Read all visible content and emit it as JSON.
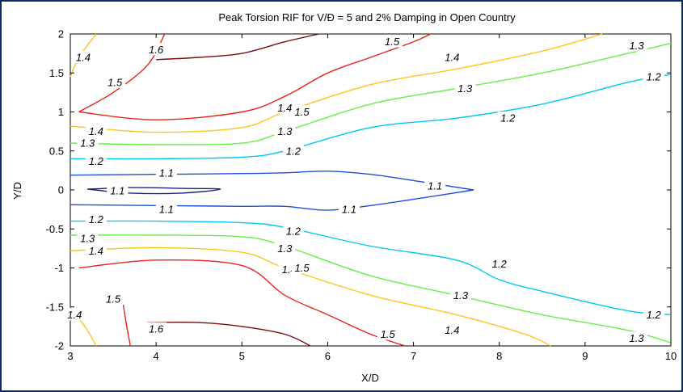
{
  "chart_data": {
    "type": "contour",
    "title": "Peak Torsion RIF for V/Đ = 5 and 2% Damping in Open Country",
    "xlabel": "X/D",
    "ylabel": "Y/D",
    "xlim": [
      3,
      10
    ],
    "ylim": [
      -2,
      2
    ],
    "xticks": [
      "3",
      "4",
      "5",
      "6",
      "7",
      "8",
      "9",
      "10"
    ],
    "yticks": [
      "2",
      "1.5",
      "1",
      "0.5",
      "0",
      "-0.5",
      "-1",
      "-1.5",
      "-2"
    ],
    "grid": false,
    "levels": [
      {
        "level": "1.1",
        "color": "#1f4fd8",
        "lines": [
          [
            [
              3.0,
              0.19
            ],
            [
              4.0,
              0.2
            ],
            [
              5.0,
              0.21
            ],
            [
              5.5,
              0.22
            ],
            [
              6.0,
              0.24
            ],
            [
              6.5,
              0.2
            ],
            [
              7.0,
              0.12
            ],
            [
              7.7,
              0.0
            ]
          ],
          [
            [
              3.0,
              -0.19
            ],
            [
              4.0,
              -0.2
            ],
            [
              5.0,
              -0.21
            ],
            [
              5.5,
              -0.21
            ],
            [
              6.0,
              -0.26
            ],
            [
              6.5,
              -0.2
            ],
            [
              7.0,
              -0.12
            ],
            [
              7.7,
              0.0
            ]
          ]
        ],
        "labels": [
          [
            4.12,
            0.22
          ],
          [
            4.12,
            -0.25
          ],
          [
            6.25,
            -0.25
          ],
          [
            7.25,
            0.05
          ]
        ]
      },
      {
        "level": "1.1",
        "color": "#1a237e",
        "lines": [
          [
            [
              3.2,
              0.01
            ],
            [
              3.7,
              0.03
            ],
            [
              4.3,
              0.02
            ],
            [
              4.75,
              0.01
            ],
            [
              4.3,
              -0.04
            ],
            [
              3.7,
              -0.04
            ],
            [
              3.2,
              0.01
            ]
          ]
        ],
        "labels": [
          [
            3.55,
            -0.01
          ]
        ]
      },
      {
        "level": "1.2",
        "color": "#00c8ee",
        "lines": [
          [
            [
              3.0,
              0.4
            ],
            [
              4.0,
              0.4
            ],
            [
              5.0,
              0.42
            ],
            [
              5.5,
              0.5
            ],
            [
              6.5,
              0.8
            ],
            [
              7.5,
              0.92
            ],
            [
              8.5,
              1.1
            ],
            [
              9.5,
              1.38
            ],
            [
              10.0,
              1.48
            ]
          ],
          [
            [
              3.0,
              -0.4
            ],
            [
              4.0,
              -0.4
            ],
            [
              5.0,
              -0.42
            ],
            [
              5.5,
              -0.48
            ],
            [
              6.5,
              -0.72
            ],
            [
              7.5,
              -0.9
            ],
            [
              8.0,
              -1.15
            ],
            [
              8.5,
              -1.3
            ],
            [
              9.5,
              -1.55
            ],
            [
              10.0,
              -1.6
            ]
          ]
        ],
        "labels": [
          [
            3.3,
            0.37
          ],
          [
            3.3,
            -0.38
          ],
          [
            5.6,
            0.5
          ],
          [
            5.6,
            -0.53
          ],
          [
            8.1,
            0.92
          ],
          [
            8.0,
            -0.95
          ],
          [
            9.8,
            1.45
          ],
          [
            9.8,
            -1.6
          ]
        ]
      },
      {
        "level": "1.3",
        "color": "#66ee44",
        "lines": [
          [
            [
              3.0,
              0.6
            ],
            [
              4.0,
              0.58
            ],
            [
              5.0,
              0.6
            ],
            [
              5.5,
              0.75
            ],
            [
              6.5,
              1.1
            ],
            [
              7.5,
              1.3
            ],
            [
              8.5,
              1.5
            ],
            [
              9.5,
              1.75
            ],
            [
              10.0,
              1.88
            ]
          ],
          [
            [
              3.0,
              -0.58
            ],
            [
              4.0,
              -0.58
            ],
            [
              5.0,
              -0.6
            ],
            [
              5.5,
              -0.72
            ],
            [
              6.5,
              -1.1
            ],
            [
              7.5,
              -1.35
            ],
            [
              8.5,
              -1.6
            ],
            [
              9.5,
              -1.8
            ],
            [
              10.0,
              -1.96
            ]
          ]
        ],
        "labels": [
          [
            3.2,
            0.6
          ],
          [
            3.2,
            -0.62
          ],
          [
            5.5,
            0.75
          ],
          [
            5.5,
            -0.75
          ],
          [
            7.6,
            1.3
          ],
          [
            7.55,
            -1.35
          ],
          [
            9.6,
            1.85
          ],
          [
            9.6,
            -1.9
          ]
        ]
      },
      {
        "level": "1.4",
        "color": "#ffc41a",
        "lines": [
          [
            [
              3.0,
              0.82
            ],
            [
              4.0,
              0.74
            ],
            [
              5.0,
              0.8
            ],
            [
              5.5,
              1.0
            ],
            [
              6.5,
              1.35
            ],
            [
              7.5,
              1.55
            ],
            [
              8.5,
              1.78
            ],
            [
              9.2,
              2.0
            ]
          ],
          [
            [
              3.0,
              -0.78
            ],
            [
              4.0,
              -0.74
            ],
            [
              5.0,
              -0.8
            ],
            [
              5.5,
              -1.0
            ],
            [
              6.5,
              -1.35
            ],
            [
              7.5,
              -1.6
            ],
            [
              8.3,
              -1.85
            ],
            [
              8.6,
              -2.0
            ]
          ],
          [
            [
              3.0,
              1.45
            ],
            [
              3.1,
              1.7
            ],
            [
              3.3,
              2.0
            ]
          ],
          [
            [
              3.0,
              -1.5
            ],
            [
              3.2,
              -1.8
            ],
            [
              3.3,
              -2.0
            ]
          ]
        ],
        "labels": [
          [
            3.3,
            0.75
          ],
          [
            3.3,
            -0.78
          ],
          [
            5.5,
            1.05
          ],
          [
            5.55,
            -1.02
          ],
          [
            7.45,
            1.7
          ],
          [
            7.45,
            -1.8
          ],
          [
            3.15,
            1.7
          ],
          [
            3.05,
            -1.6
          ]
        ]
      },
      {
        "level": "1.5",
        "color": "#e8241a",
        "lines": [
          [
            [
              3.1,
              1.0
            ],
            [
              3.5,
              1.25
            ],
            [
              3.9,
              1.6
            ],
            [
              4.1,
              2.0
            ]
          ],
          [
            [
              3.1,
              1.0
            ],
            [
              4.0,
              0.9
            ],
            [
              5.0,
              1.0
            ],
            [
              5.5,
              1.2
            ],
            [
              6.0,
              1.5
            ],
            [
              6.5,
              1.7
            ],
            [
              7.0,
              1.9
            ],
            [
              7.2,
              2.0
            ]
          ],
          [
            [
              3.1,
              -1.0
            ],
            [
              4.0,
              -0.9
            ],
            [
              5.0,
              -0.97
            ],
            [
              5.5,
              -1.35
            ],
            [
              6.0,
              -1.6
            ],
            [
              6.5,
              -1.85
            ],
            [
              6.9,
              -2.0
            ]
          ],
          [
            [
              3.6,
              -1.35
            ],
            [
              3.65,
              -1.7
            ],
            [
              3.7,
              -2.0
            ]
          ]
        ],
        "labels": [
          [
            3.52,
            1.38
          ],
          [
            5.7,
            1.0
          ],
          [
            5.7,
            -1.0
          ],
          [
            6.75,
            1.9
          ],
          [
            6.7,
            -1.85
          ],
          [
            3.5,
            -1.4
          ]
        ]
      },
      {
        "level": "1.6",
        "color": "#7a0e0e",
        "lines": [
          [
            [
              4.0,
              1.67
            ],
            [
              4.5,
              1.7
            ],
            [
              5.0,
              1.75
            ],
            [
              5.5,
              1.9
            ],
            [
              5.9,
              2.0
            ]
          ],
          [
            [
              3.9,
              -1.7
            ],
            [
              4.5,
              -1.7
            ],
            [
              5.0,
              -1.75
            ],
            [
              5.5,
              -1.85
            ],
            [
              5.8,
              -2.0
            ]
          ]
        ],
        "labels": [
          [
            4.0,
            1.8
          ],
          [
            4.0,
            -1.78
          ]
        ]
      }
    ]
  }
}
